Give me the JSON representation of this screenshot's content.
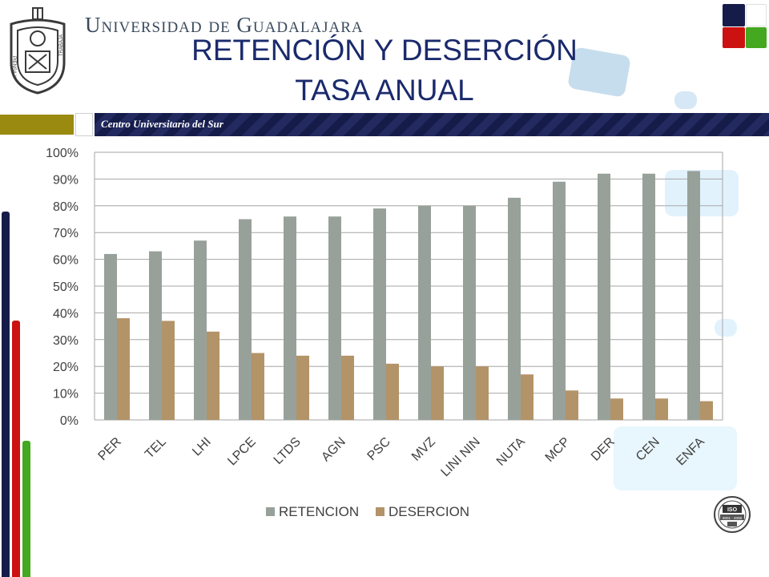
{
  "header": {
    "university": "Universidad de Guadalajara",
    "title_line1": "RETENCIÓN Y DESERCIÓN",
    "title_line2": "TASA ANUAL",
    "center_label": "Centro Universitario del Sur"
  },
  "crest_text": {
    "left": "PIENSA Y",
    "right": "TRABAJA"
  },
  "iso_seal_text": {
    "top": "ISO",
    "middle": "9001 - 2008"
  },
  "colors": {
    "retencion": "#97a19a",
    "desercion": "#b39368",
    "title": "#1a2a6c",
    "navy": "#161c4a",
    "olive": "#9a8a10",
    "red": "#cc1111",
    "green": "#44a820"
  },
  "chart_data": {
    "type": "bar",
    "categories": [
      "PER",
      "TEL",
      "LHI",
      "LPCE",
      "LTDS",
      "AGN",
      "PSC",
      "MVZ",
      "LINI NIN",
      "NUTA",
      "MCP",
      "DER",
      "CEN",
      "ENFA"
    ],
    "series": [
      {
        "name": "RETENCION",
        "color": "#97a19a",
        "values": [
          62,
          63,
          67,
          75,
          76,
          76,
          79,
          80,
          80,
          83,
          89,
          92,
          92,
          93
        ]
      },
      {
        "name": "DESERCION",
        "color": "#b39368",
        "values": [
          38,
          37,
          33,
          25,
          24,
          24,
          21,
          20,
          20,
          17,
          11,
          8,
          8,
          7
        ]
      }
    ],
    "yticks": [
      "0%",
      "10%",
      "20%",
      "30%",
      "40%",
      "50%",
      "60%",
      "70%",
      "80%",
      "90%",
      "100%"
    ],
    "ylim": [
      0,
      100
    ],
    "grid": true,
    "legend_position": "bottom"
  }
}
